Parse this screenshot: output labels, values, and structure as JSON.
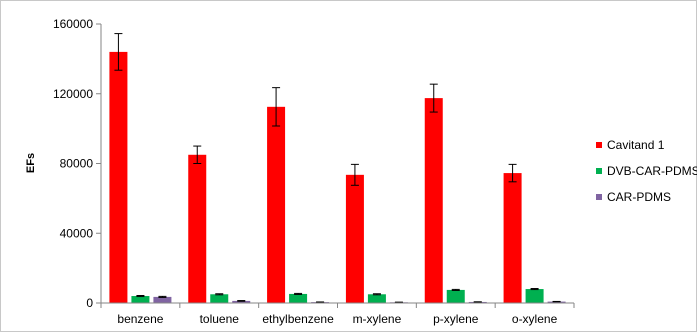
{
  "chart_data": {
    "type": "bar",
    "title": "",
    "xlabel": "",
    "ylabel": "EFs",
    "ylim": [
      0,
      160000
    ],
    "yticks": [
      0,
      40000,
      80000,
      120000,
      160000
    ],
    "categories": [
      "benzene",
      "toluene",
      "ethylbenzene",
      "m-xylene",
      "p-xylene",
      "o-xylene"
    ],
    "series": [
      {
        "name": "Cavitand 1",
        "color": "#ff0000",
        "values": [
          144000,
          85000,
          112500,
          73500,
          117500,
          74500
        ],
        "errors": [
          10500,
          5000,
          11000,
          6000,
          8000,
          5000
        ]
      },
      {
        "name": "DVB-CAR-PDMS",
        "color": "#00b050",
        "values": [
          4000,
          5000,
          5200,
          5000,
          7500,
          8000
        ],
        "errors": [
          300,
          300,
          300,
          300,
          300,
          300
        ]
      },
      {
        "name": "CAR-PDMS",
        "color": "#8064a2",
        "values": [
          3500,
          1200,
          500,
          400,
          600,
          800
        ],
        "errors": [
          300,
          200,
          100,
          100,
          100,
          100
        ]
      }
    ],
    "grid": false,
    "legend_position": "right"
  }
}
